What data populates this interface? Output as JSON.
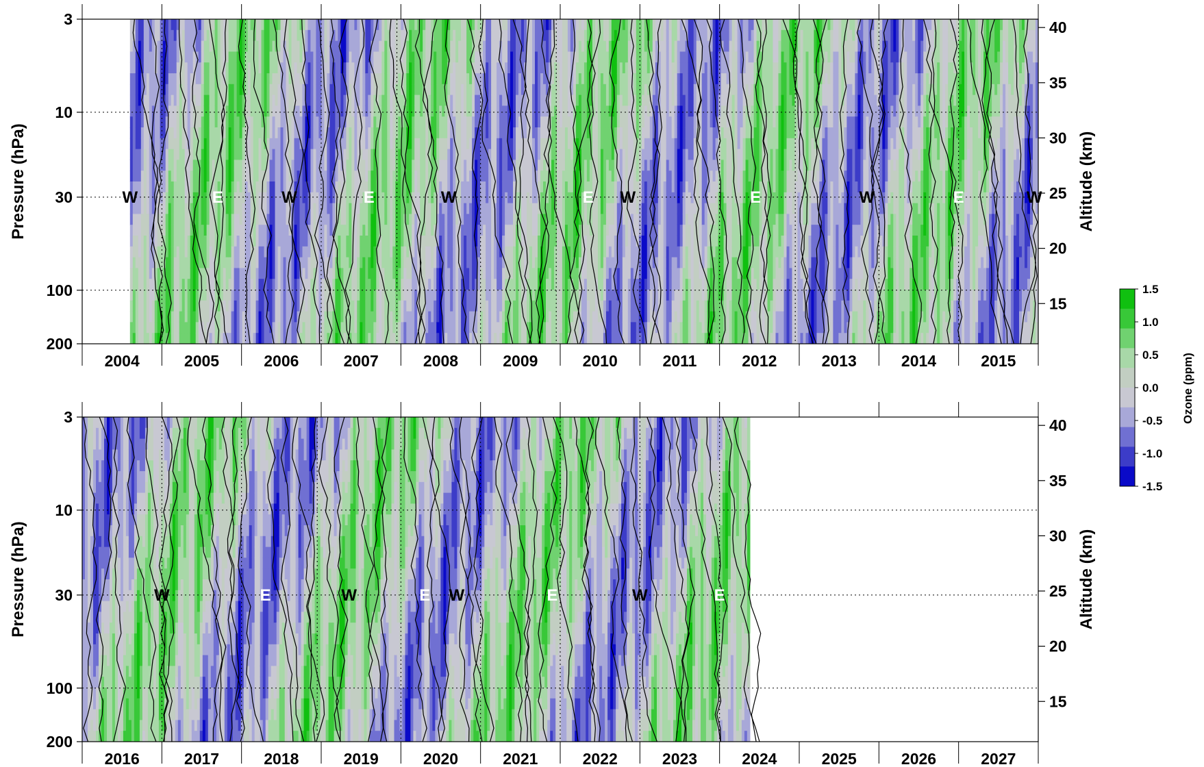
{
  "chart_data": [
    {
      "type": "heatmap",
      "panel": "top",
      "xlabel": "",
      "ylabel_left": "Pressure (hPa)",
      "ylabel_right": "Altitude (km)",
      "x_tick_labels": [
        "2004",
        "2005",
        "2006",
        "2007",
        "2008",
        "2009",
        "2010",
        "2011",
        "2012",
        "2013",
        "2014",
        "2015"
      ],
      "xlim": [
        2004.0,
        2016.0
      ],
      "data_start": 2004.6,
      "data_end": 2016.0,
      "pressure_ticks": [
        "3",
        "10",
        "30",
        "100",
        "200"
      ],
      "altitude_ticks": [
        "40",
        "35",
        "30",
        "25",
        "20",
        "15"
      ],
      "qbo_labels": [
        {
          "text": "W",
          "x": 2004.6
        },
        {
          "text": "E",
          "x": 2005.7
        },
        {
          "text": "W",
          "x": 2006.6
        },
        {
          "text": "E",
          "x": 2007.6
        },
        {
          "text": "W",
          "x": 2008.6
        },
        {
          "text": "E",
          "x": 2010.35
        },
        {
          "text": "W",
          "x": 2010.85
        },
        {
          "text": "E",
          "x": 2012.45
        },
        {
          "text": "W",
          "x": 2013.85
        },
        {
          "text": "E",
          "x": 2015.0
        },
        {
          "text": "W",
          "x": 2015.95
        }
      ],
      "phase_lines": [
        2005.0,
        2006.05,
        2007.0,
        2007.95,
        2009.0,
        2009.95,
        2011.0,
        2012.0,
        2012.95,
        2014.0,
        2015.0
      ]
    },
    {
      "type": "heatmap",
      "panel": "bottom",
      "xlabel": "",
      "ylabel_left": "Pressure (hPa)",
      "ylabel_right": "Altitude (km)",
      "x_tick_labels": [
        "2016",
        "2017",
        "2018",
        "2019",
        "2020",
        "2021",
        "2022",
        "2023",
        "2024",
        "2025",
        "2026",
        "2027"
      ],
      "xlim": [
        2016.0,
        2028.0
      ],
      "data_start": 2016.0,
      "data_end": 2024.38,
      "pressure_ticks": [
        "3",
        "10",
        "30",
        "100",
        "200"
      ],
      "altitude_ticks": [
        "40",
        "35",
        "30",
        "25",
        "20",
        "15"
      ],
      "qbo_labels": [
        {
          "text": "W",
          "x": 2017.0
        },
        {
          "text": "E",
          "x": 2018.3
        },
        {
          "text": "W",
          "x": 2019.35
        },
        {
          "text": "E",
          "x": 2020.3
        },
        {
          "text": "W",
          "x": 2020.7
        },
        {
          "text": "E",
          "x": 2021.9
        },
        {
          "text": "W",
          "x": 2023.0
        },
        {
          "text": "E",
          "x": 2024.0
        }
      ],
      "phase_lines": [
        2017.0,
        2018.0,
        2018.95,
        2020.0,
        2021.0,
        2022.0,
        2023.0,
        2024.0
      ]
    }
  ],
  "colorbar": {
    "label": "Ozone (ppm)",
    "ticks": [
      "1.5",
      "1.0",
      "0.5",
      "0.0",
      "-0.5",
      "-1.0",
      "-1.5"
    ],
    "colors": [
      "#0a0ac8",
      "#3c3cc8",
      "#7070d2",
      "#a8a8d8",
      "#c8c8d2",
      "#c2cec2",
      "#a8d8a8",
      "#70d270",
      "#38c838",
      "#10c010"
    ]
  }
}
